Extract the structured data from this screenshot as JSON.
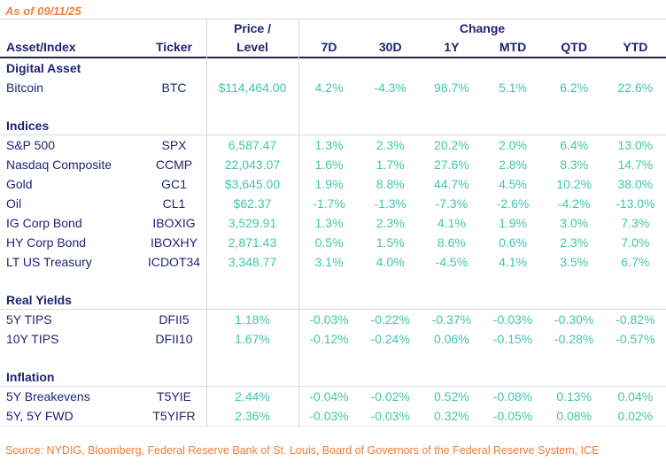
{
  "as_of": "As of 09/11/25",
  "colors": {
    "navy": "#1d2473",
    "teal": "#3fc6ad",
    "orange_asof": "#ef8142",
    "orange_source": "#ef7c35",
    "grid": "#dadada",
    "header_rule": "#242645"
  },
  "chart_data": {
    "type": "table",
    "header_top": {
      "price": "Price /",
      "change": "Change"
    },
    "header_cols": [
      "Asset/Index",
      "Ticker",
      "Level",
      "7D",
      "30D",
      "1Y",
      "MTD",
      "QTD",
      "YTD"
    ],
    "sections": [
      {
        "label": "Digital Asset",
        "underline": false,
        "rows": [
          {
            "name": "Bitcoin",
            "ticker": "BTC",
            "price": "$114,464.00",
            "changes": [
              "4.2%",
              "-4.3%",
              "98.7%",
              "5.1%",
              "6.2%",
              "22.6%"
            ]
          }
        ]
      },
      {
        "label": "Indices",
        "underline": true,
        "rows": [
          {
            "name": "S&P 500",
            "ticker": "SPX",
            "price": "6,587.47",
            "changes": [
              "1.3%",
              "2.3%",
              "20.2%",
              "2.0%",
              "6.4%",
              "13.0%"
            ]
          },
          {
            "name": "Nasdaq Composite",
            "ticker": "CCMP",
            "price": "22,043.07",
            "changes": [
              "1.6%",
              "1.7%",
              "27.6%",
              "2.8%",
              "8.3%",
              "14.7%"
            ]
          },
          {
            "name": "Gold",
            "ticker": "GC1",
            "price": "$3,645.00",
            "changes": [
              "1.9%",
              "8.8%",
              "44.7%",
              "4.5%",
              "10.2%",
              "38.0%"
            ]
          },
          {
            "name": "Oil",
            "ticker": "CL1",
            "price": "$62.37",
            "changes": [
              "-1.7%",
              "-1.3%",
              "-7.3%",
              "-2.6%",
              "-4.2%",
              "-13.0%"
            ]
          },
          {
            "name": "IG Corp Bond",
            "ticker": "IBOXIG",
            "price": "3,529.91",
            "changes": [
              "1.3%",
              "2.3%",
              "4.1%",
              "1.9%",
              "3.0%",
              "7.3%"
            ]
          },
          {
            "name": "HY Corp Bond",
            "ticker": "IBOXHY",
            "price": "2,871.43",
            "changes": [
              "0.5%",
              "1.5%",
              "8.6%",
              "0.6%",
              "2.3%",
              "7.0%"
            ]
          },
          {
            "name": "LT US Treasury",
            "ticker": "ICDOT34",
            "price": "3,348.77",
            "changes": [
              "3.1%",
              "4.0%",
              "-4.5%",
              "4.1%",
              "3.5%",
              "6.7%"
            ]
          }
        ]
      },
      {
        "label": "Real Yields",
        "underline": true,
        "rows": [
          {
            "name": "5Y TIPS",
            "ticker": "DFII5",
            "price": "1.18%",
            "changes": [
              "-0.03%",
              "-0.22%",
              "-0.37%",
              "-0.03%",
              "-0.30%",
              "-0.82%"
            ]
          },
          {
            "name": "10Y TIPS",
            "ticker": "DFII10",
            "price": "1.67%",
            "changes": [
              "-0.12%",
              "-0.24%",
              "0.06%",
              "-0.15%",
              "-0.28%",
              "-0.57%"
            ]
          }
        ]
      },
      {
        "label": "Inflation",
        "underline": true,
        "rows": [
          {
            "name": "5Y Breakevens",
            "ticker": "T5YIE",
            "price": "2.44%",
            "changes": [
              "-0.04%",
              "-0.02%",
              "0.52%",
              "-0.08%",
              "0.13%",
              "0.04%"
            ]
          },
          {
            "name": "5Y, 5Y FWD",
            "ticker": "T5YIFR",
            "price": "2.36%",
            "changes": [
              "-0.03%",
              "-0.03%",
              "0.32%",
              "-0.05%",
              "0.08%",
              "0.02%"
            ]
          }
        ]
      }
    ]
  },
  "source_note": "Source: NYDIG, Bloomberg, Federal Reserve Bank of St. Louis, Board of Governors of the Federal Reserve System, ICE"
}
